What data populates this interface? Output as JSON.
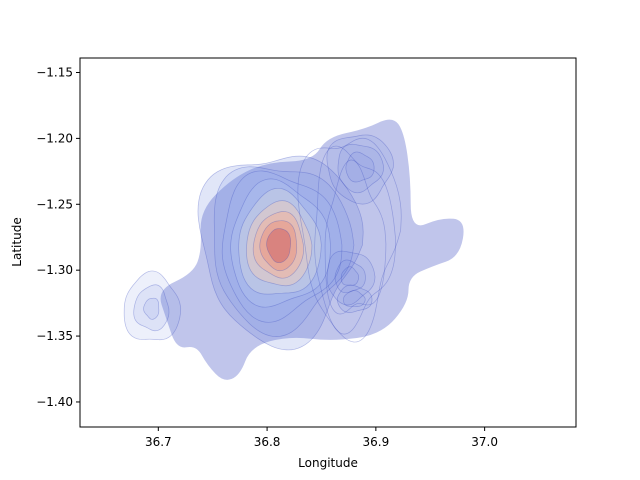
{
  "chart_data": {
    "type": "heatmap",
    "subtype": "kde-density-contour",
    "title": "",
    "xlabel": "Longitude",
    "ylabel": "Latitude",
    "xlim": [
      36.628,
      37.084
    ],
    "ylim": [
      -1.419,
      -1.139
    ],
    "x_ticks": [
      36.7,
      36.8,
      36.9,
      37.0
    ],
    "x_tick_labels": [
      "36.7",
      "36.8",
      "36.9",
      "37.0"
    ],
    "y_ticks": [
      -1.15,
      -1.2,
      -1.25,
      -1.3,
      -1.35,
      -1.4
    ],
    "y_tick_labels": [
      "−1.15",
      "−1.20",
      "−1.25",
      "−1.30",
      "−1.35",
      "−1.40"
    ],
    "grid": false,
    "legend": "none",
    "colormap": "coolwarm",
    "fill_alpha": 0.3,
    "density_peaks": [
      {
        "x": 36.807,
        "y": -1.284,
        "level": 1.0
      },
      {
        "x": 36.885,
        "y": -1.222,
        "level": 0.28
      },
      {
        "x": 36.876,
        "y": -1.305,
        "level": 0.25
      },
      {
        "x": 36.88,
        "y": -1.322,
        "level": 0.2
      },
      {
        "x": 36.694,
        "y": -1.329,
        "level": 0.2
      },
      {
        "x": 36.76,
        "y": -1.365,
        "level": 0.05
      },
      {
        "x": 36.965,
        "y": -1.278,
        "level": 0.05
      }
    ],
    "colors": {
      "outer": "#3b4cc0",
      "mid": "#dddddd",
      "peak": "#b40426",
      "contour_line": "#3b4cc0"
    }
  }
}
